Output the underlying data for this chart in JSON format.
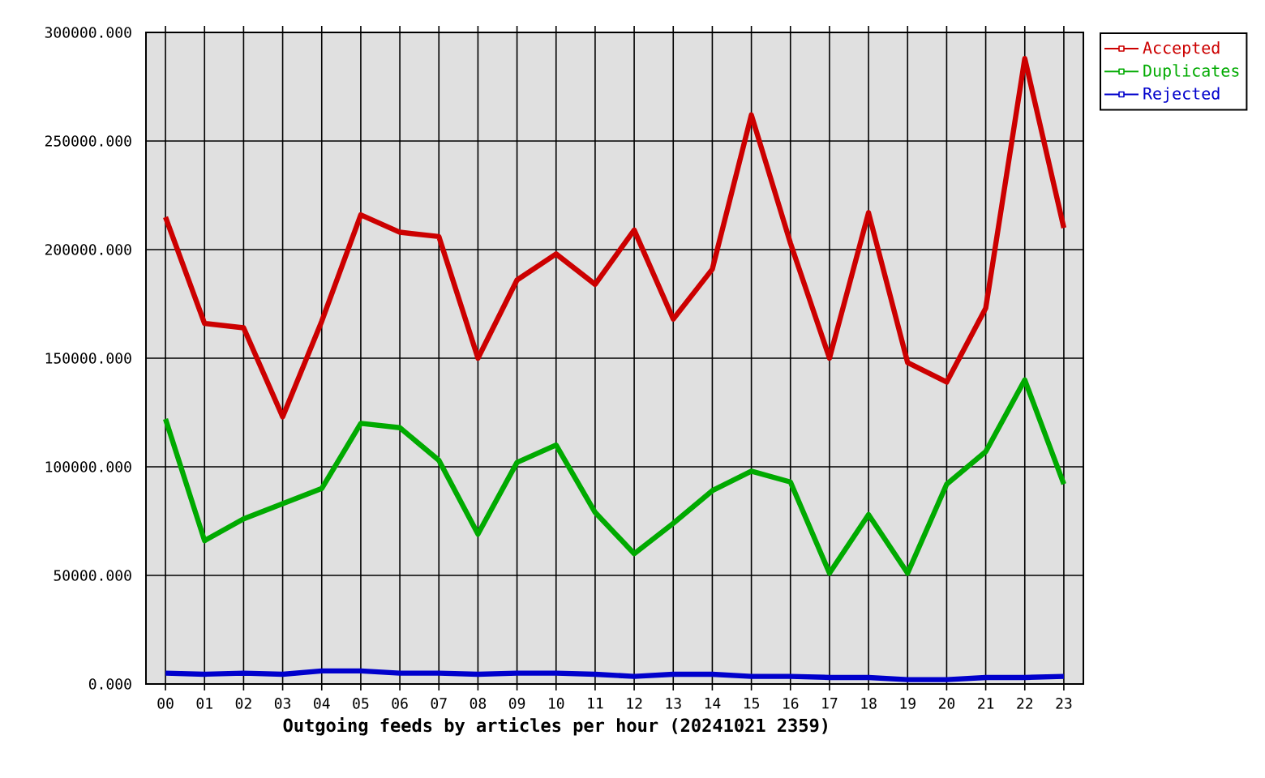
{
  "chart_data": {
    "type": "line",
    "xlabel": "Outgoing feeds by articles per hour (20241021 2359)",
    "categories": [
      "00",
      "01",
      "02",
      "03",
      "04",
      "05",
      "06",
      "07",
      "08",
      "09",
      "10",
      "11",
      "12",
      "13",
      "14",
      "15",
      "16",
      "17",
      "18",
      "19",
      "20",
      "21",
      "22",
      "23"
    ],
    "series": [
      {
        "name": "Accepted",
        "color": "#cc0000",
        "values": [
          215000,
          166000,
          164000,
          123000,
          167000,
          216000,
          208000,
          206000,
          150000,
          186000,
          198000,
          184000,
          209000,
          168000,
          191000,
          262000,
          203000,
          150000,
          217000,
          148000,
          139000,
          173000,
          288000,
          210000
        ]
      },
      {
        "name": "Duplicates",
        "color": "#00aa00",
        "values": [
          122000,
          66000,
          76000,
          83000,
          90000,
          120000,
          118000,
          103000,
          69000,
          102000,
          110000,
          79000,
          60000,
          74000,
          89000,
          98000,
          93000,
          51000,
          78000,
          51000,
          92000,
          107000,
          140000,
          92000
        ]
      },
      {
        "name": "Rejected",
        "color": "#0000cc",
        "values": [
          5000,
          4500,
          5000,
          4500,
          6000,
          6000,
          5000,
          5000,
          4500,
          5000,
          5000,
          4500,
          3500,
          4500,
          4500,
          3500,
          3500,
          3000,
          3000,
          2000,
          2000,
          3000,
          3000,
          3500
        ]
      }
    ],
    "ylim": [
      0,
      300000
    ],
    "yticks": [
      {
        "value": 0,
        "label": "0.000"
      },
      {
        "value": 50000,
        "label": "50000.000"
      },
      {
        "value": 100000,
        "label": "100000.000"
      },
      {
        "value": 150000,
        "label": "150000.000"
      },
      {
        "value": 200000,
        "label": "200000.000"
      },
      {
        "value": 250000,
        "label": "250000.000"
      },
      {
        "value": 300000,
        "label": "300000.000"
      }
    ],
    "grid": true,
    "legend": "top right"
  }
}
